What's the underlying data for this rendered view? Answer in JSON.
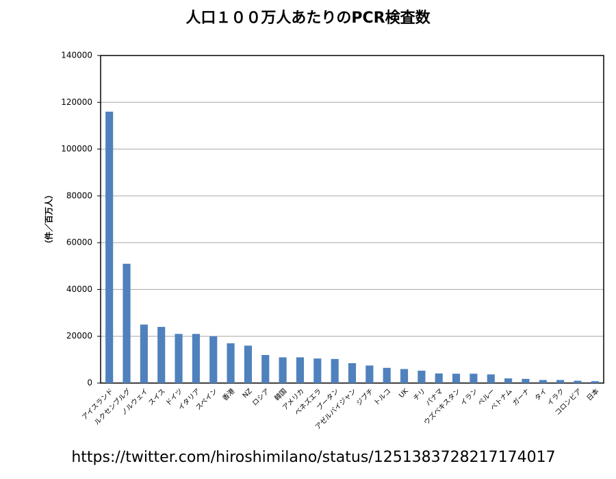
{
  "chart_data": {
    "type": "bar",
    "title": "人口１００万人あたりのPCR検査数",
    "y_label": "（件／百万人）",
    "source": "https://twitter.com/hiroshimilano/status/1251383728217174017",
    "categories": [
      "アイスランド",
      "ルクセンブルグ",
      "ノルウェイ",
      "スイス",
      "ドイツ",
      "イタリア",
      "スペイン",
      "香港",
      "NZ",
      "ロシア",
      "韓国",
      "アメリカ",
      "ベネズエラ",
      "ブータン",
      "アゼルバイジャン",
      "ジブチ",
      "トルコ",
      "UK",
      "チリ",
      "パナマ",
      "ウズベキスタン",
      "イラン",
      "ペルー",
      "ベトナム",
      "ガーナ",
      "タイ",
      "イラク",
      "コロンビア",
      "日本"
    ],
    "values": [
      116000,
      51000,
      25000,
      24000,
      21000,
      21000,
      20000,
      17000,
      16000,
      12000,
      11000,
      11000,
      10500,
      10300,
      8500,
      7500,
      6500,
      6000,
      5300,
      4100,
      4000,
      4000,
      3700,
      2000,
      1800,
      1300,
      1300,
      1000,
      800
    ],
    "color": "#4f81bd",
    "ylim": [
      0,
      140000
    ],
    "yticks": [
      0,
      20000,
      40000,
      60000,
      80000,
      100000,
      120000,
      140000
    ],
    "grid": true
  }
}
